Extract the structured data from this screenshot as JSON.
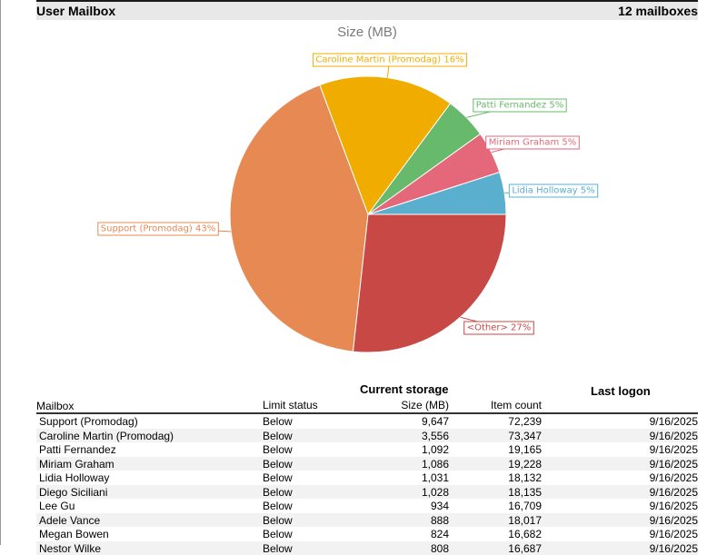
{
  "header": {
    "title": "User Mailbox",
    "count": "12 mailboxes"
  },
  "chart_data": {
    "type": "pie",
    "title": "Size (MB)",
    "slices": [
      {
        "label": "Lidia Holloway 5%",
        "value": 5,
        "color": "#5aafcf"
      },
      {
        "label": "Miriam Graham 5%",
        "value": 5,
        "color": "#e5687a"
      },
      {
        "label": "Patti Fernandez 5%",
        "value": 5,
        "color": "#67b96b"
      },
      {
        "label": "Caroline Martin (Promodag) 16%",
        "value": 16,
        "color": "#f0ad00"
      },
      {
        "label": "Support (Promodag) 43%",
        "value": 43,
        "color": "#e68952"
      },
      {
        "label": "<Other> 27%",
        "value": 27,
        "color": "#c84846"
      }
    ]
  },
  "table": {
    "group_current_storage": "Current storage",
    "group_last_logon": "Last logon",
    "columns": {
      "mailbox": "Mailbox",
      "limit_status": "Limit status",
      "size": "Size (MB)",
      "item_count": "Item count"
    },
    "rows": [
      {
        "mailbox": "Support (Promodag)",
        "limit": "Below",
        "size": "9,647",
        "items": "72,239",
        "logon": "9/16/2025"
      },
      {
        "mailbox": "Caroline Martin (Promodag)",
        "limit": "Below",
        "size": "3,556",
        "items": "73,347",
        "logon": "9/16/2025"
      },
      {
        "mailbox": "Patti Fernandez",
        "limit": "Below",
        "size": "1,092",
        "items": "19,165",
        "logon": "9/16/2025"
      },
      {
        "mailbox": "Miriam Graham",
        "limit": "Below",
        "size": "1,086",
        "items": "19,228",
        "logon": "9/16/2025"
      },
      {
        "mailbox": "Lidia Holloway",
        "limit": "Below",
        "size": "1,031",
        "items": "18,132",
        "logon": "9/16/2025"
      },
      {
        "mailbox": "Diego Siciliani",
        "limit": "Below",
        "size": "1,028",
        "items": "18,135",
        "logon": "9/16/2025"
      },
      {
        "mailbox": "Lee Gu",
        "limit": "Below",
        "size": "934",
        "items": "16,709",
        "logon": "9/16/2025"
      },
      {
        "mailbox": "Adele Vance",
        "limit": "Below",
        "size": "888",
        "items": "18,017",
        "logon": "9/16/2025"
      },
      {
        "mailbox": "Megan Bowen",
        "limit": "Below",
        "size": "824",
        "items": "16,682",
        "logon": "9/16/2025"
      },
      {
        "mailbox": "Nestor Wilke",
        "limit": "Below",
        "size": "808",
        "items": "16,687",
        "logon": "9/16/2025"
      }
    ]
  }
}
